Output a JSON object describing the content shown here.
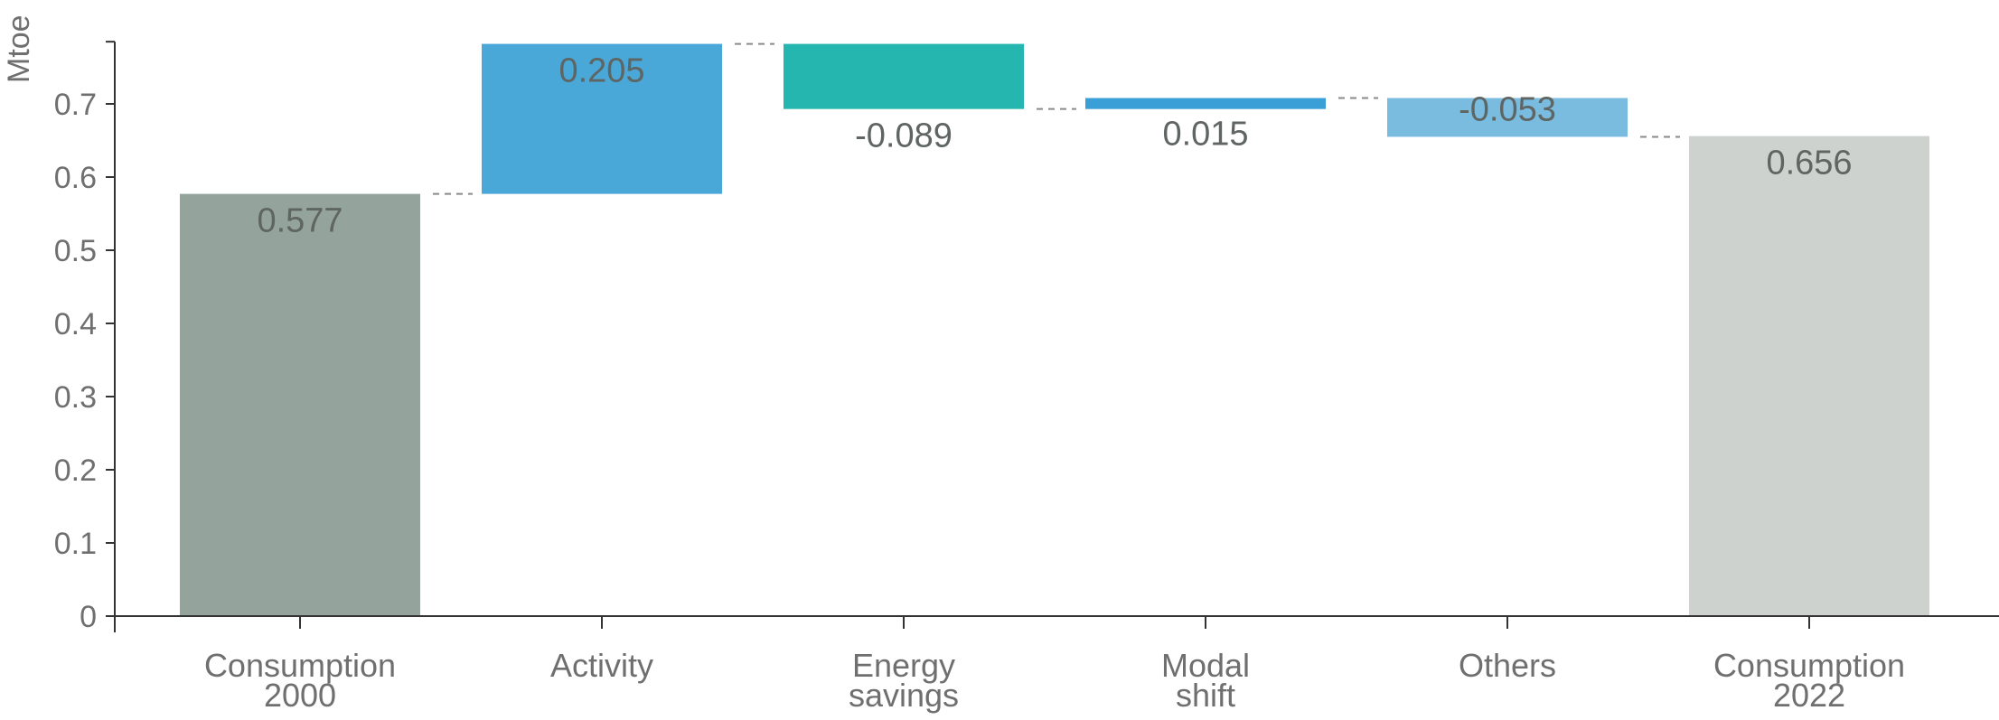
{
  "chart_data": {
    "type": "bar",
    "subtype": "waterfall",
    "ylabel": "Mtoe",
    "ylim": [
      0,
      0.785
    ],
    "yticks": [
      0,
      0.1,
      0.2,
      0.3,
      0.4,
      0.5,
      0.6,
      0.7
    ],
    "ytick_labels": [
      "0",
      "0.1",
      "0.2",
      "0.3",
      "0.4",
      "0.5",
      "0.6",
      "0.7"
    ],
    "grid": false,
    "legend": "none",
    "steps": [
      {
        "label_lines": [
          "Consumption",
          "2000"
        ],
        "kind": "total",
        "value": 0.577,
        "value_label": "0.577",
        "color": "#95a39d"
      },
      {
        "label_lines": [
          "Activity"
        ],
        "kind": "delta",
        "value": 0.205,
        "value_label": "0.205",
        "color": "#4aa8d8"
      },
      {
        "label_lines": [
          "Energy",
          "savings"
        ],
        "kind": "delta",
        "value": -0.089,
        "value_label": "-0.089",
        "color": "#26b6b0"
      },
      {
        "label_lines": [
          "Modal",
          "shift"
        ],
        "kind": "delta",
        "value": 0.015,
        "value_label": "0.015",
        "color": "#3a9fd6"
      },
      {
        "label_lines": [
          "Others"
        ],
        "kind": "delta",
        "value": -0.053,
        "value_label": "-0.053",
        "color": "#79bce0"
      },
      {
        "label_lines": [
          "Consumption",
          "2022"
        ],
        "kind": "total",
        "value": 0.656,
        "value_label": "0.656",
        "color": "#cdd2cf"
      }
    ]
  }
}
